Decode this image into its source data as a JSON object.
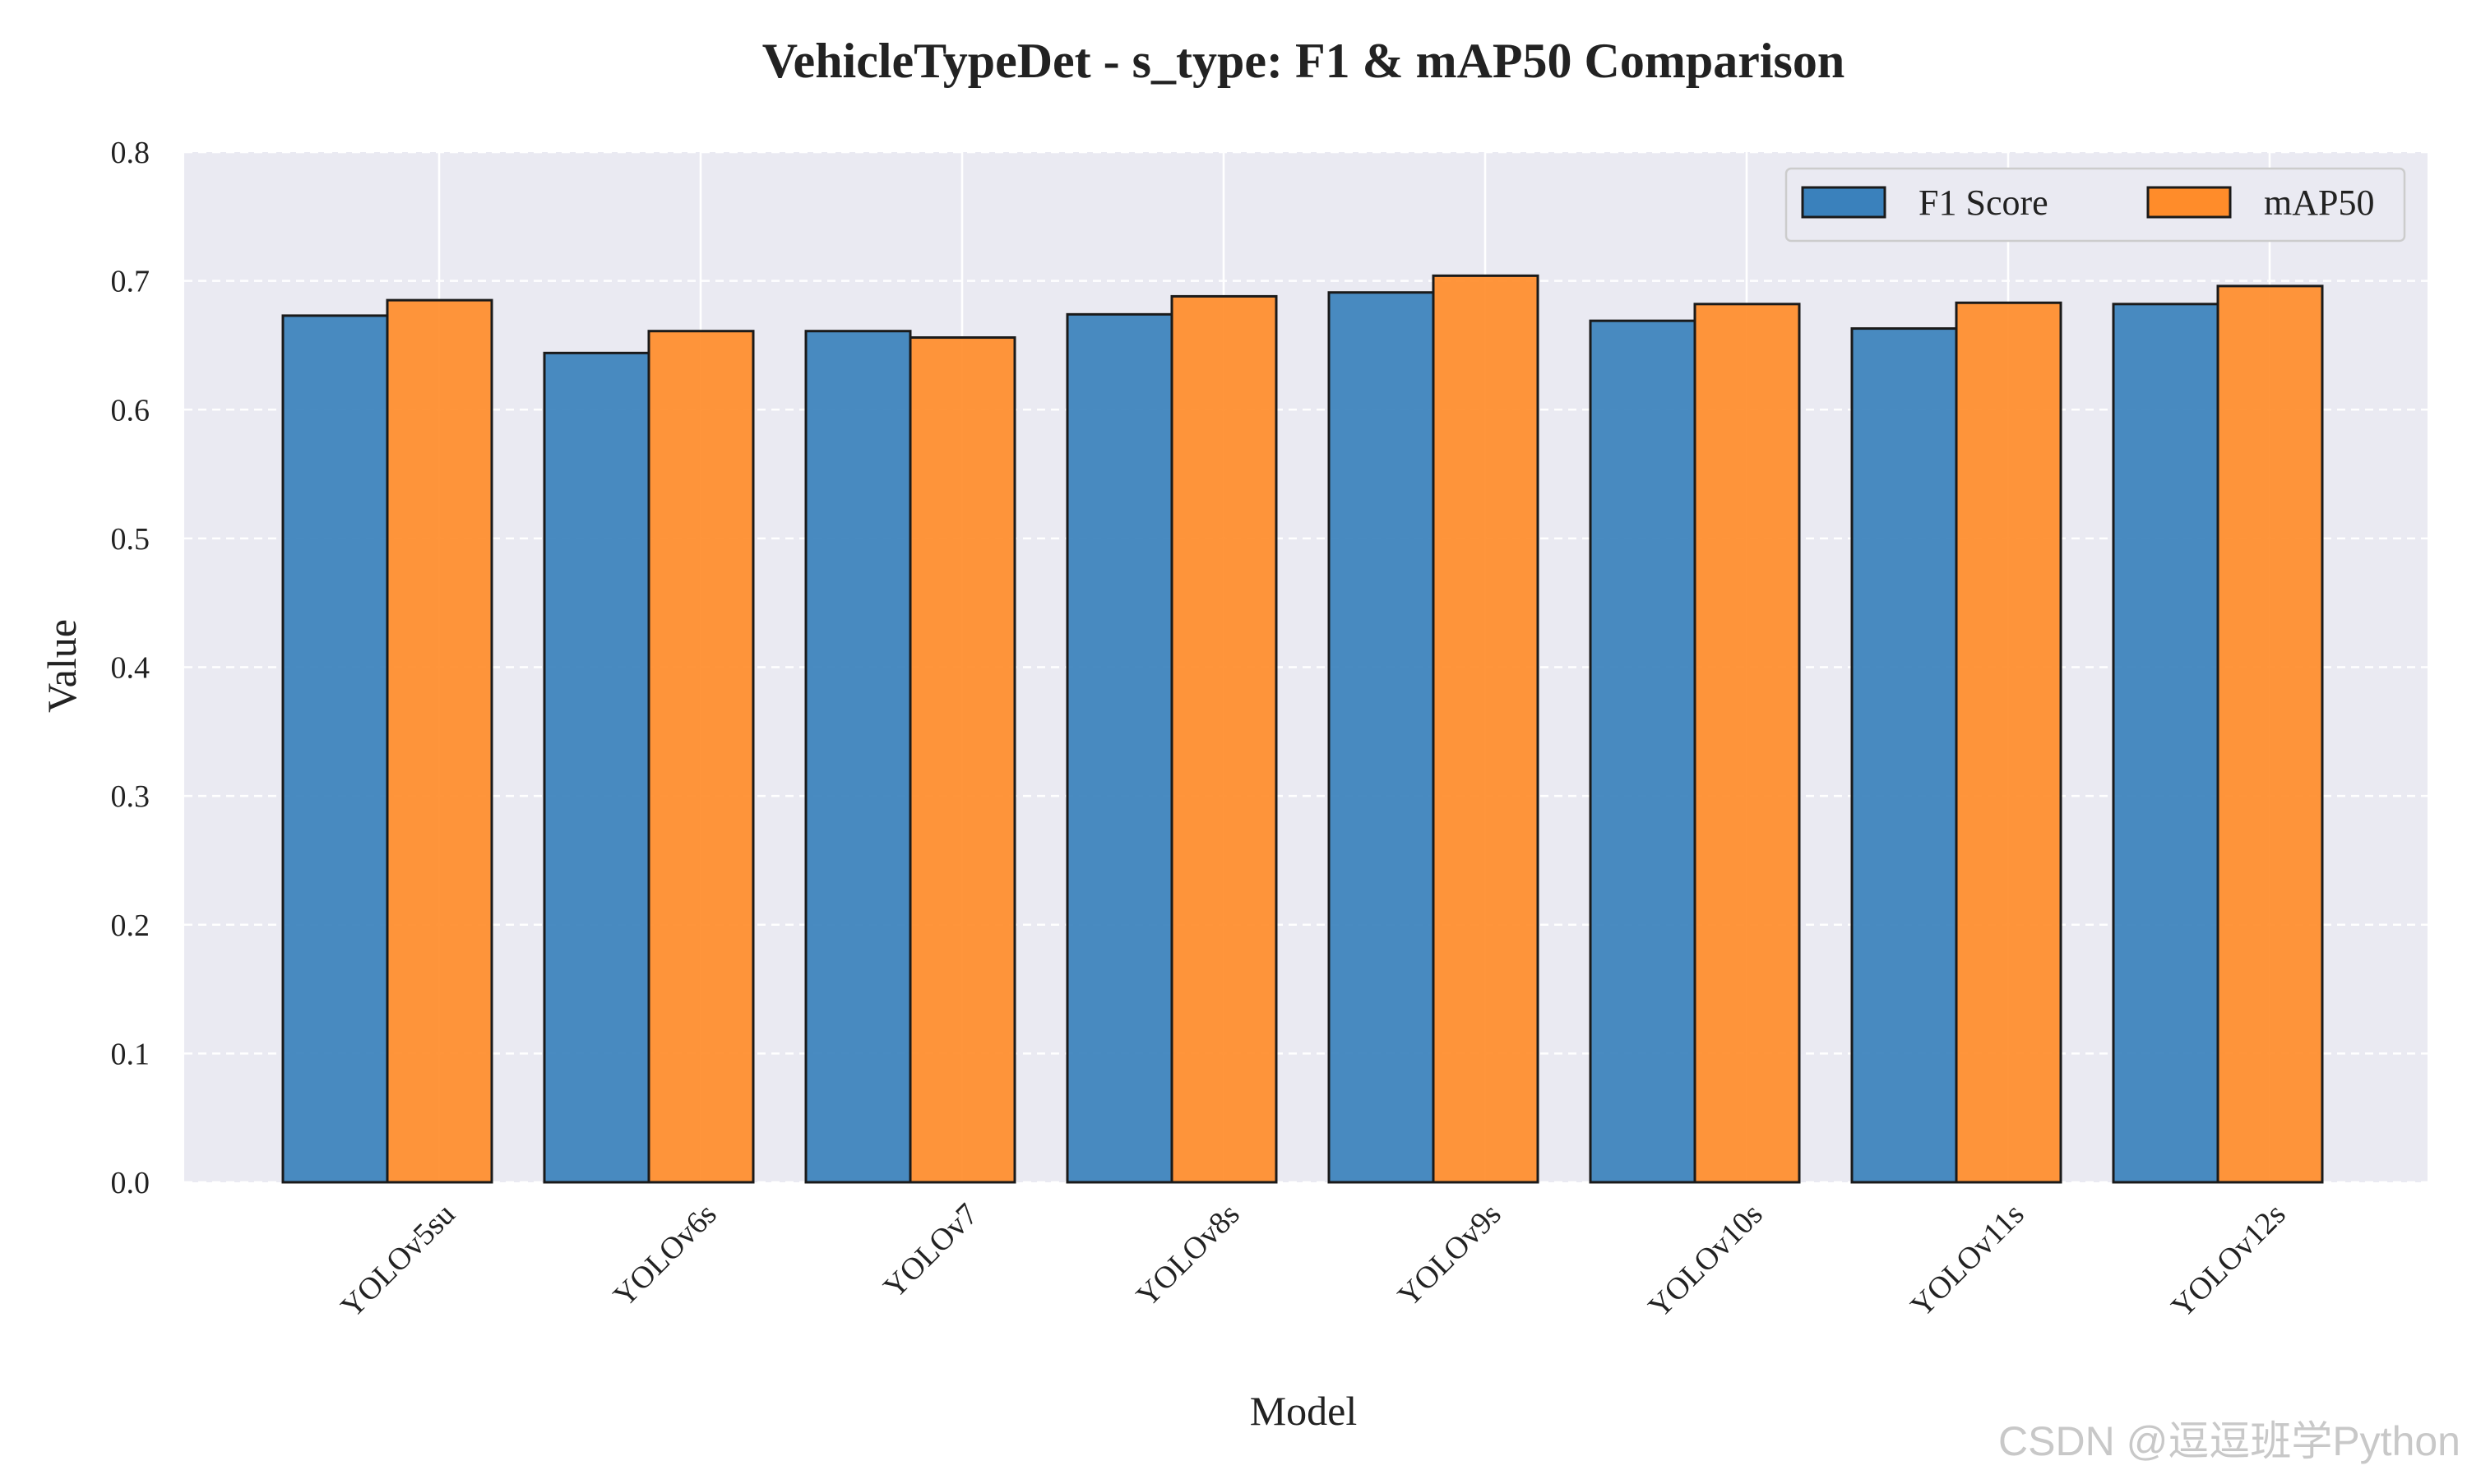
{
  "chart_data": {
    "type": "bar",
    "title": "VehicleTypeDet - s_type: F1 & mAP50 Comparison",
    "xlabel": "Model",
    "ylabel": "Value",
    "ylim": [
      0,
      0.8
    ],
    "yticks": [
      "0.0",
      "0.1",
      "0.2",
      "0.3",
      "0.4",
      "0.5",
      "0.6",
      "0.7",
      "0.8"
    ],
    "categories": [
      "YOLOv5su",
      "YOLOv6s",
      "YOLOv7",
      "YOLOv8s",
      "YOLOv9s",
      "YOLOv10s",
      "YOLOv11s",
      "YOLOv12s"
    ],
    "series": [
      {
        "name": "F1 Score",
        "color": "#3a81bc",
        "values": [
          0.673,
          0.644,
          0.661,
          0.674,
          0.691,
          0.669,
          0.663,
          0.682
        ]
      },
      {
        "name": "mAP50",
        "color": "#ff8c2a",
        "values": [
          0.685,
          0.661,
          0.656,
          0.688,
          0.704,
          0.682,
          0.683,
          0.696
        ]
      }
    ],
    "grid": true,
    "legend_position": "top-right",
    "background": "#eaeaf2"
  },
  "watermark": "CSDN @逗逗班学Python"
}
